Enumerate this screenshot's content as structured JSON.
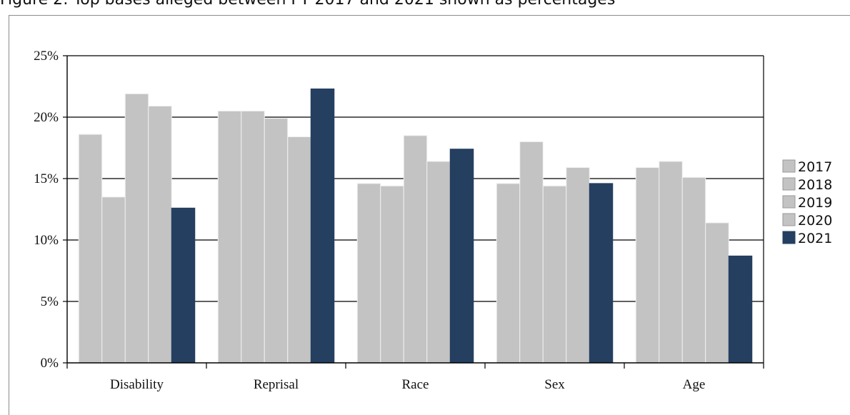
{
  "figure": {
    "title": "Figure 2: Top bases alleged between FY 2017 and 2021 shown as percentages"
  },
  "colors": {
    "light_bar": "#c3c3c3",
    "light_bar_edge": "#f0f0f0",
    "dark_bar": "#243f60",
    "grid": "#000000"
  },
  "chart_data": {
    "type": "bar",
    "title": "",
    "xlabel": "",
    "ylabel": "",
    "ylim": [
      0,
      25
    ],
    "y_ticks": [
      0,
      5,
      10,
      15,
      20,
      25
    ],
    "y_tick_labels": [
      "0%",
      "5%",
      "10%",
      "15%",
      "20%",
      "25%"
    ],
    "grid": true,
    "legend_position": "right",
    "categories": [
      "Disability",
      "Reprisal",
      "Race",
      "Sex",
      "Age"
    ],
    "series": [
      {
        "name": "2017",
        "values": [
          18.6,
          20.5,
          14.6,
          14.6,
          15.9
        ]
      },
      {
        "name": "2018",
        "values": [
          13.5,
          20.5,
          14.4,
          18.0,
          16.4
        ]
      },
      {
        "name": "2019",
        "values": [
          21.9,
          19.9,
          18.5,
          14.4,
          15.1
        ]
      },
      {
        "name": "2020",
        "values": [
          20.9,
          18.4,
          16.4,
          15.9,
          11.4
        ]
      },
      {
        "name": "2021",
        "values": [
          12.6,
          22.3,
          17.4,
          14.6,
          8.7
        ]
      }
    ]
  }
}
